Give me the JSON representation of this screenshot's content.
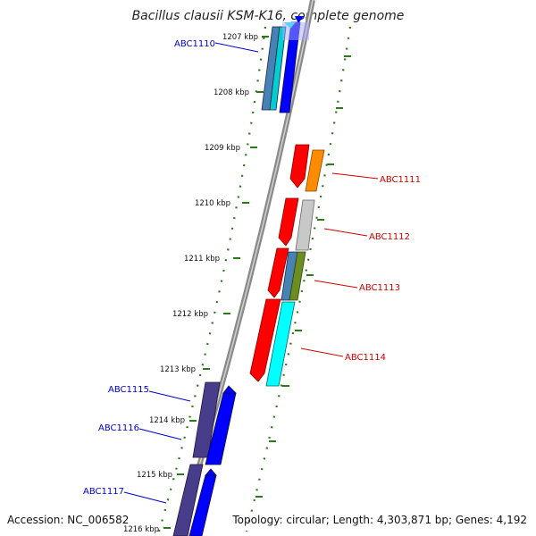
{
  "title": "Bacillus clausii KSM-K16, complete genome",
  "footer": {
    "accession": "Accession: NC_006582",
    "summary": "Topology: circular; Length: 4,303,871 bp; Genes: 4,192"
  },
  "ticks": [
    "1207 kbp",
    "1208 kbp",
    "1209 kbp",
    "1210 kbp",
    "1211 kbp",
    "1212 kbp",
    "1213 kbp",
    "1214 kbp",
    "1215 kbp",
    "1216 kbp"
  ],
  "gene_labels": {
    "left": [
      "ABC1110",
      "ABC1115",
      "ABC1116",
      "ABC1117"
    ],
    "right": [
      "ABC1111",
      "ABC1112",
      "ABC1113",
      "ABC1114"
    ]
  },
  "colors": {
    "forward_label": "#0000cc",
    "reverse_label": "#cc0000",
    "tick_mark": "#2a7a1a",
    "backbone": "#888888",
    "gene_palette": [
      "#ff0000",
      "#ff8c00",
      "#c8c8c8",
      "#6b8e23",
      "#4682b4",
      "#00ffff",
      "#0000ff",
      "#483d8b"
    ]
  }
}
